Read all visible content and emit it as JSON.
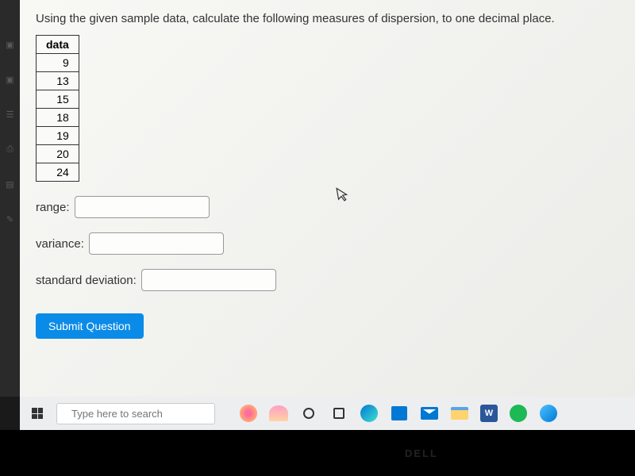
{
  "question": {
    "prompt": "Using the given sample data, calculate the following measures of dispersion, to one decimal place.",
    "table_header": "data",
    "data_values": [
      "9",
      "13",
      "15",
      "18",
      "19",
      "20",
      "24"
    ],
    "fields": {
      "range": {
        "label": "range:",
        "value": ""
      },
      "variance": {
        "label": "variance:",
        "value": ""
      },
      "stddev": {
        "label": "standard deviation:",
        "value": ""
      }
    },
    "submit_label": "Submit Question"
  },
  "taskbar": {
    "search_placeholder": "Type here to search",
    "word_letter": "W"
  },
  "dell": "DELL",
  "colors": {
    "content_bg": "#f5f5f2",
    "submit_bg": "#0b8be8",
    "taskbar_bg": "#edeef0",
    "border": "#333333"
  }
}
